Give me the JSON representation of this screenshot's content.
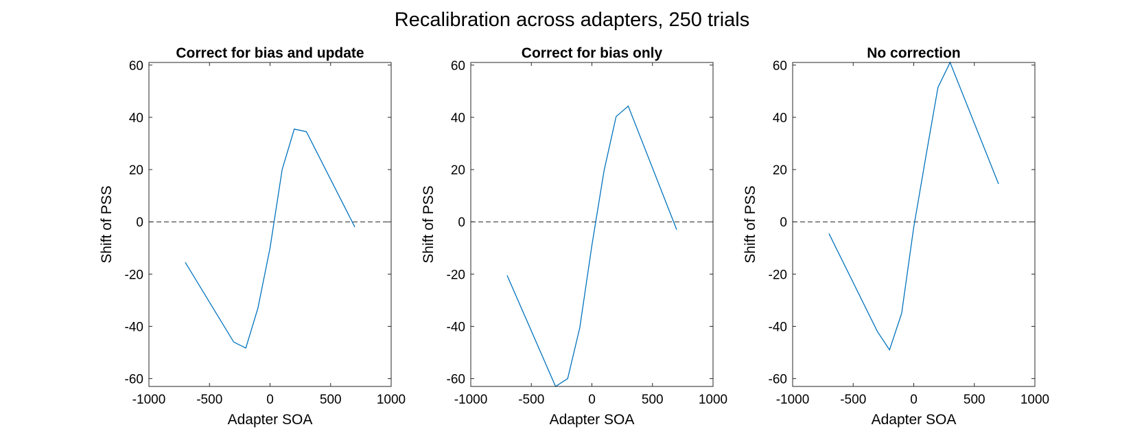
{
  "figure": {
    "title": "Recalibration across adapters, 250 trials"
  },
  "chart_data": [
    {
      "type": "line",
      "title": "Correct for bias and update",
      "xlabel": "Adapter SOA",
      "ylabel": "Shift of PSS",
      "xlim": [
        -1000,
        1000
      ],
      "ylim": [
        -63,
        61
      ],
      "xticks": [
        -1000,
        -500,
        0,
        500,
        1000
      ],
      "yticks": [
        -60,
        -40,
        -20,
        0,
        20,
        40,
        60
      ],
      "reference_line": {
        "y": 0,
        "style": "dashed",
        "color": "#000000"
      },
      "series": [
        {
          "color": "#0072bd",
          "x": [
            -700,
            -300,
            -200,
            -100,
            0,
            100,
            200,
            300,
            700
          ],
          "y": [
            -15.5,
            -46,
            -48.3,
            -33,
            -10,
            20,
            35.5,
            34.5,
            -2
          ]
        }
      ]
    },
    {
      "type": "line",
      "title": "Correct for bias only",
      "xlabel": "Adapter SOA",
      "ylabel": "Shift of PSS",
      "xlim": [
        -1000,
        1000
      ],
      "ylim": [
        -63,
        61
      ],
      "xticks": [
        -1000,
        -500,
        0,
        500,
        1000
      ],
      "yticks": [
        -60,
        -40,
        -20,
        0,
        20,
        40,
        60
      ],
      "reference_line": {
        "y": 0,
        "style": "dashed",
        "color": "#000000"
      },
      "series": [
        {
          "color": "#0072bd",
          "x": [
            -700,
            -300,
            -200,
            -100,
            0,
            100,
            200,
            300,
            700
          ],
          "y": [
            -20.5,
            -63,
            -60,
            -40.5,
            -9,
            19.5,
            40.3,
            44.3,
            -3
          ]
        }
      ]
    },
    {
      "type": "line",
      "title": "No correction",
      "xlabel": "Adapter SOA",
      "ylabel": "Shift of PSS",
      "xlim": [
        -1000,
        1000
      ],
      "ylim": [
        -63,
        61
      ],
      "xticks": [
        -1000,
        -500,
        0,
        500,
        1000
      ],
      "yticks": [
        -60,
        -40,
        -20,
        0,
        20,
        40,
        60
      ],
      "reference_line": {
        "y": 0,
        "style": "dashed",
        "color": "#000000"
      },
      "series": [
        {
          "color": "#0072bd",
          "x": [
            -700,
            -300,
            -200,
            -100,
            0,
            100,
            200,
            300,
            700
          ],
          "y": [
            -4.5,
            -42,
            -49,
            -35,
            -2,
            25,
            51.5,
            61,
            14.5
          ]
        }
      ]
    }
  ]
}
